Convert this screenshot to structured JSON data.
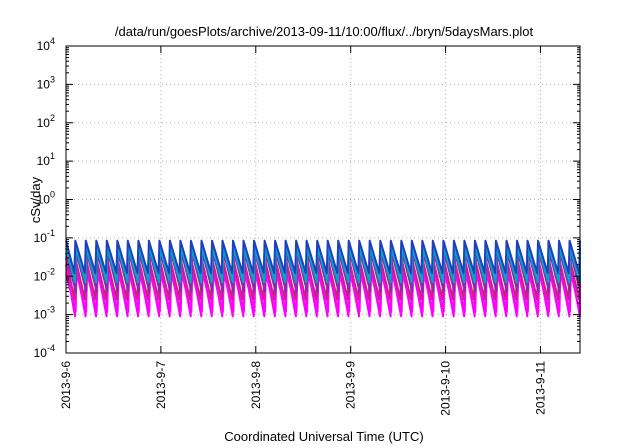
{
  "chart_data": {
    "type": "line",
    "title": "/data/run/goesPlots/archive/2013-09-11/10:00/flux/../bryn/5daysMars.plot",
    "xlabel": "Coordinated Universal Time (UTC)",
    "ylabel": "cSv/day",
    "yscale": "log",
    "ylim": [
      0.0001,
      10000
    ],
    "xlim": [
      "2013-09-06T00:00",
      "2013-09-11T10:00"
    ],
    "grid": true,
    "legend": "none",
    "x_tick_labels": [
      "2013-9-6",
      "2013-9-7",
      "2013-9-8",
      "2013-9-9",
      "2013-9-10",
      "2013-9-11"
    ],
    "y_tick_labels": [
      {
        "base": "10",
        "exp": "-4"
      },
      {
        "base": "10",
        "exp": "-3"
      },
      {
        "base": "10",
        "exp": "-2"
      },
      {
        "base": "10",
        "exp": "-1"
      },
      {
        "base": "10",
        "exp": "0"
      },
      {
        "base": "10",
        "exp": "1"
      },
      {
        "base": "10",
        "exp": "2"
      },
      {
        "base": "10",
        "exp": "3"
      },
      {
        "base": "10",
        "exp": "4"
      }
    ],
    "sawtooth_period_hours": 2.66,
    "series": [
      {
        "color": "#1f3fbf",
        "peak": 0.085,
        "trough": 0.012,
        "values_range": [
          0.012,
          0.085
        ]
      },
      {
        "color": "#00a8c8",
        "peak": 0.055,
        "trough": 0.007,
        "values_range": [
          0.007,
          0.055
        ]
      },
      {
        "color": "#8c2aa8",
        "peak": 0.04,
        "trough": 0.004,
        "values_range": [
          0.004,
          0.04
        ]
      },
      {
        "color": "#cc1f8a",
        "peak": 0.03,
        "trough": 0.0025,
        "values_range": [
          0.0025,
          0.03
        ]
      },
      {
        "color": "#ff00ff",
        "peak": 0.02,
        "trough": 0.0009,
        "values_range": [
          0.0009,
          0.02
        ]
      },
      {
        "color": "#e81cf0",
        "peak": 0.012,
        "trough": 0.0012,
        "values_range": [
          0.0012,
          0.012
        ]
      }
    ]
  }
}
